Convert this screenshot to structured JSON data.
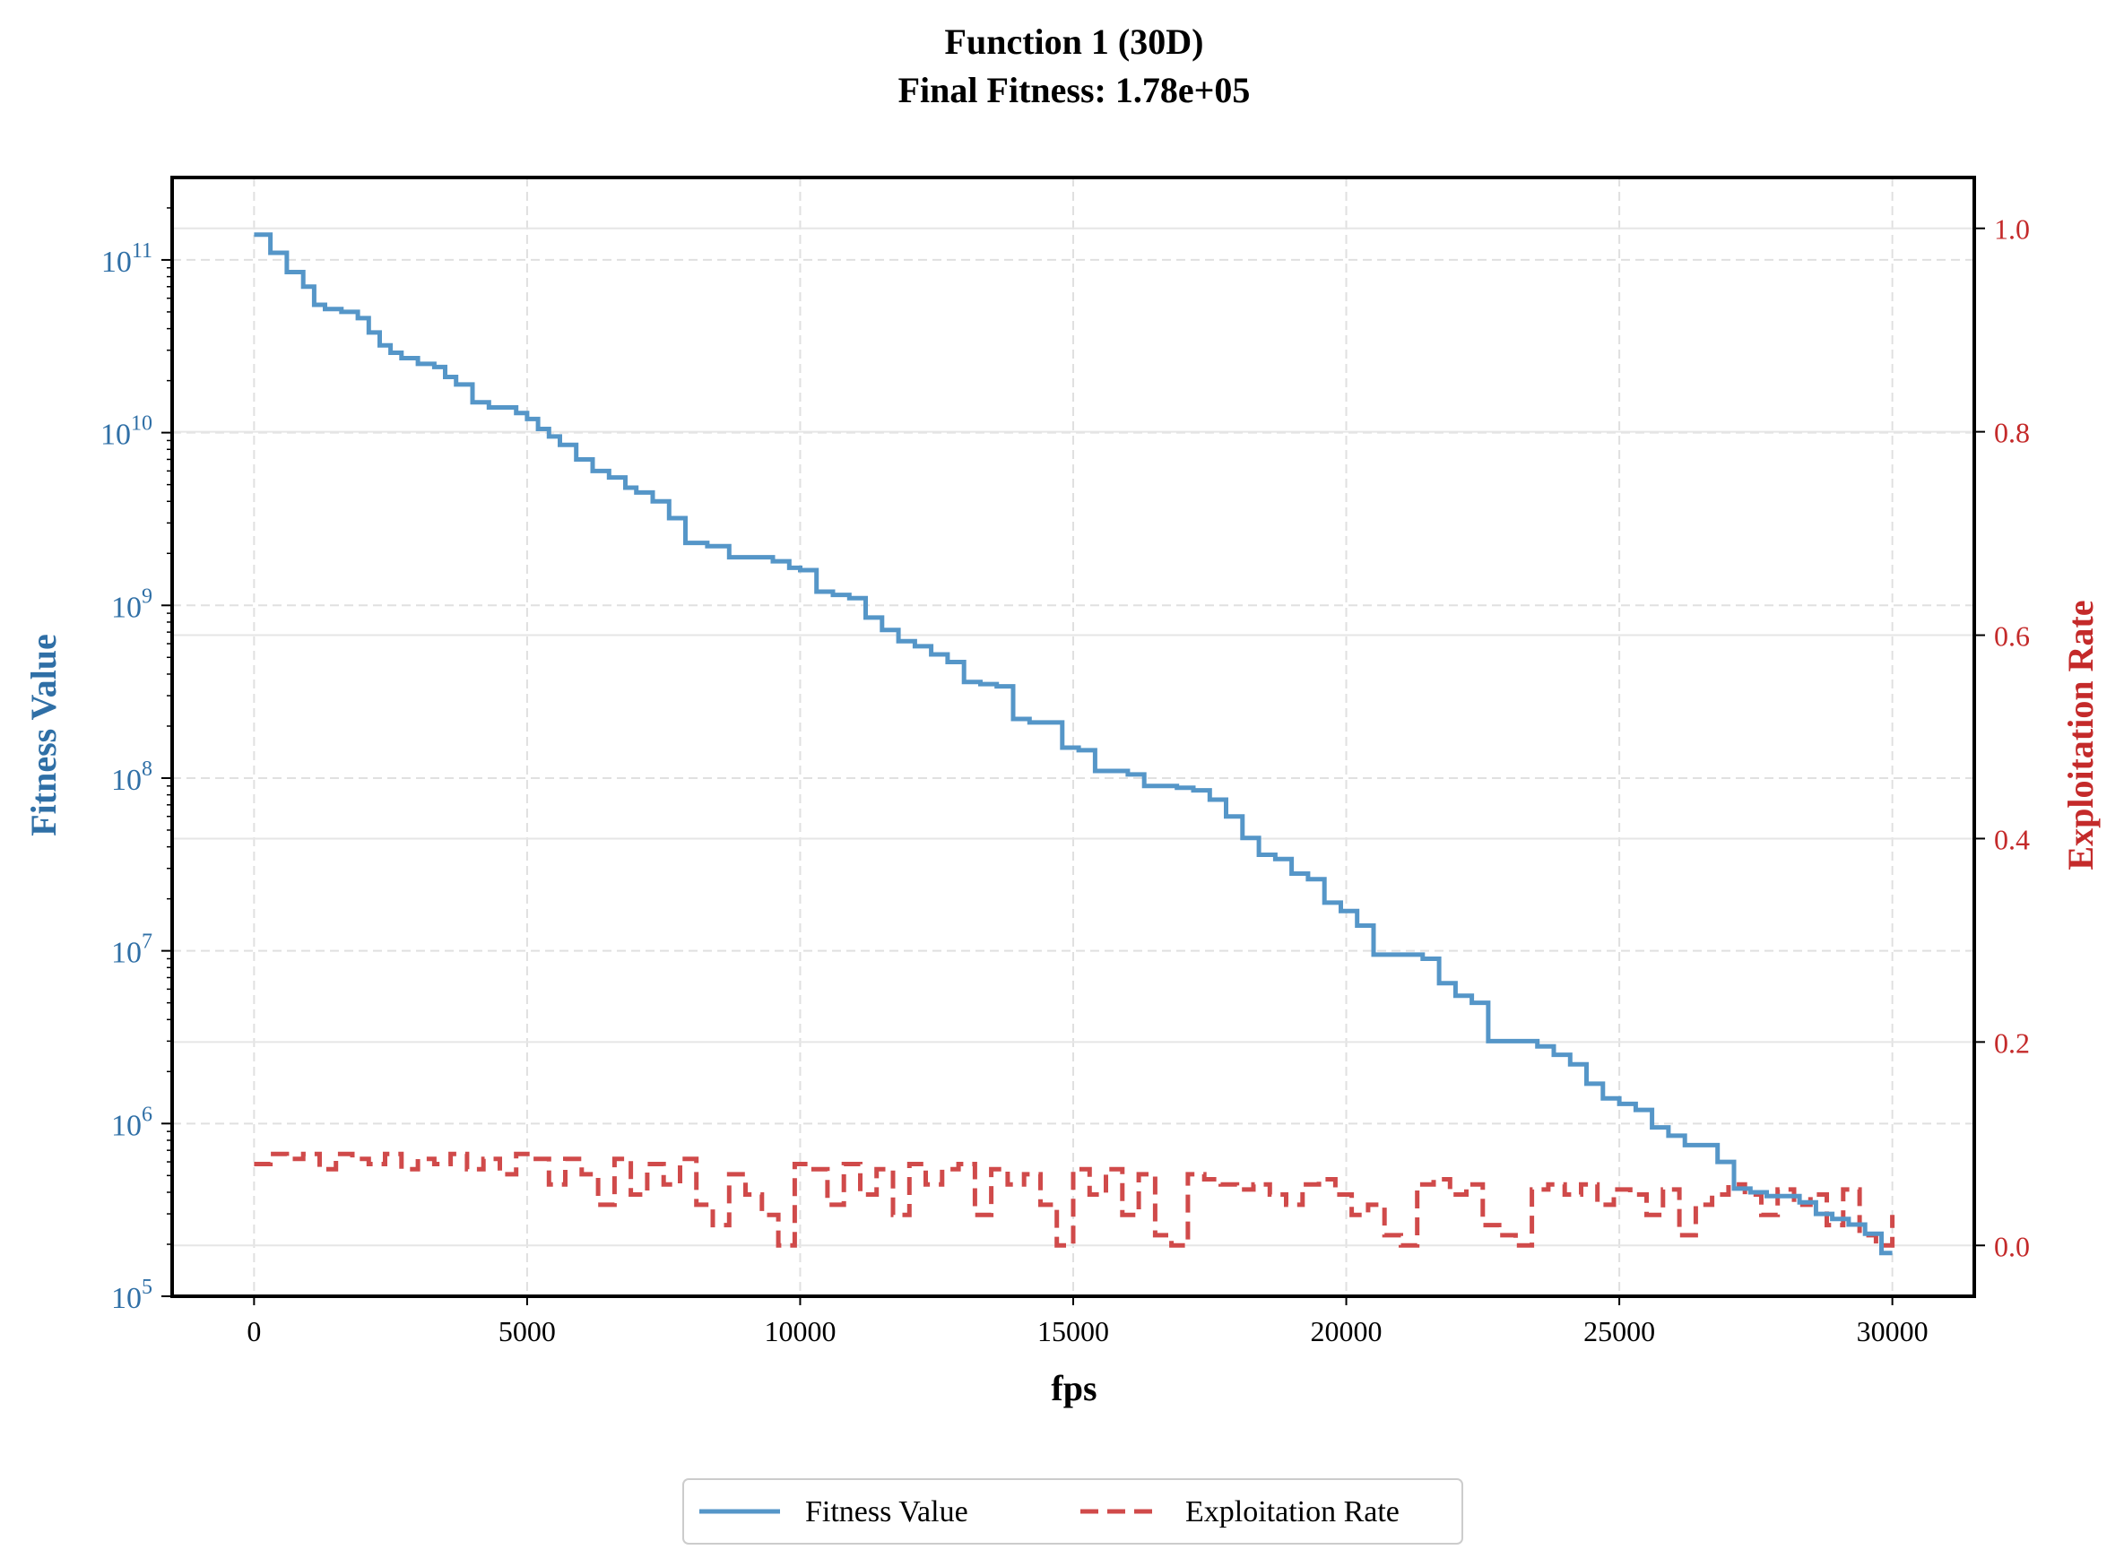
{
  "chart_data": {
    "type": "line",
    "title": "Function 1 (30D)",
    "subtitle": "Final Fitness: 1.78e+05",
    "xlabel": "fps",
    "ylabel_left": "Fitness Value",
    "ylabel_right": "Exploitation Rate",
    "x_ticks": [
      "0",
      "5000",
      "10000",
      "15000",
      "20000",
      "25000",
      "30000"
    ],
    "x_tick_values": [
      0,
      5000,
      10000,
      15000,
      20000,
      25000,
      30000
    ],
    "xlim": [
      -1500,
      31500
    ],
    "left_axis": {
      "scale": "log",
      "ylim": [
        100000.0,
        300000000000.0
      ],
      "ticks": [
        {
          "base": "10",
          "exp": "5",
          "value": 100000
        },
        {
          "base": "10",
          "exp": "6",
          "value": 1000000
        },
        {
          "base": "10",
          "exp": "7",
          "value": 10000000
        },
        {
          "base": "10",
          "exp": "8",
          "value": 100000000
        },
        {
          "base": "10",
          "exp": "9",
          "value": 1000000000
        },
        {
          "base": "10",
          "exp": "10",
          "value": 10000000000
        },
        {
          "base": "10",
          "exp": "11",
          "value": 100000000000
        }
      ]
    },
    "right_axis": {
      "scale": "linear",
      "ylim": [
        -0.05,
        1.05
      ],
      "ticks": [
        "0.0",
        "0.2",
        "0.4",
        "0.6",
        "0.8",
        "1.0"
      ],
      "tick_values": [
        0.0,
        0.2,
        0.4,
        0.6,
        0.8,
        1.0
      ]
    },
    "grid": true,
    "legend_position": "bottom-center",
    "colors": {
      "fitness": "#5596c8",
      "exploitation": "#d04a4a",
      "left_axis_text": "#2f6fa6",
      "right_axis_text": "#c42a2a"
    },
    "series": [
      {
        "name": "Fitness Value",
        "axis": "left",
        "style": "solid",
        "step": true,
        "x": [
          0,
          300,
          600,
          900,
          1100,
          1300,
          1600,
          1900,
          2100,
          2300,
          2500,
          2700,
          3000,
          3300,
          3500,
          3700,
          4000,
          4300,
          4500,
          4800,
          5000,
          5200,
          5400,
          5600,
          5900,
          6200,
          6500,
          6800,
          7000,
          7300,
          7600,
          7900,
          8100,
          8300,
          8700,
          9000,
          9500,
          9800,
          10000,
          10300,
          10600,
          10900,
          11200,
          11500,
          11800,
          12100,
          12400,
          12700,
          13000,
          13300,
          13600,
          13900,
          14200,
          14500,
          14800,
          15100,
          15400,
          15700,
          16000,
          16300,
          16600,
          16900,
          17200,
          17500,
          17800,
          18100,
          18400,
          18700,
          19000,
          19300,
          19600,
          19900,
          20200,
          20500,
          20800,
          21100,
          21400,
          21700,
          22000,
          22300,
          22600,
          22900,
          23200,
          23500,
          23800,
          24100,
          24400,
          24700,
          25000,
          25300,
          25600,
          25900,
          26200,
          26500,
          26800,
          27100,
          27400,
          27700,
          28000,
          28300,
          28600,
          28900,
          29200,
          29500,
          29800,
          30000
        ],
        "values": [
          140000000000.0,
          110000000000.0,
          85000000000.0,
          70000000000.0,
          55000000000.0,
          52000000000.0,
          50000000000.0,
          46000000000.0,
          38000000000.0,
          32000000000.0,
          29000000000.0,
          27000000000.0,
          25000000000.0,
          24000000000.0,
          21000000000.0,
          19000000000.0,
          15000000000.0,
          14000000000.0,
          14000000000.0,
          13000000000.0,
          12000000000.0,
          10500000000.0,
          9500000000.0,
          8500000000.0,
          7000000000.0,
          6000000000.0,
          5500000000.0,
          4800000000.0,
          4500000000.0,
          4000000000.0,
          3200000000.0,
          2300000000.0,
          2300000000.0,
          2200000000.0,
          1900000000.0,
          1900000000.0,
          1800000000.0,
          1650000000.0,
          1600000000.0,
          1200000000.0,
          1150000000.0,
          1100000000.0,
          850000000.0,
          720000000.0,
          620000000.0,
          580000000.0,
          520000000.0,
          470000000.0,
          360000000.0,
          350000000.0,
          340000000.0,
          220000000.0,
          210000000.0,
          210000000.0,
          150000000.0,
          145000000.0,
          110000000.0,
          110000000.0,
          105000000.0,
          90000000.0,
          90000000.0,
          88000000.0,
          85000000.0,
          75000000.0,
          60000000.0,
          45000000.0,
          36000000.0,
          34000000.0,
          28000000.0,
          26000000.0,
          19000000.0,
          17000000.0,
          14000000.0,
          9500000.0,
          9500000.0,
          9500000.0,
          9000000.0,
          6500000.0,
          5500000.0,
          5000000.0,
          3000000.0,
          3000000.0,
          3000000.0,
          2800000.0,
          2500000.0,
          2200000.0,
          1700000.0,
          1400000.0,
          1300000.0,
          1200000.0,
          950000.0,
          850000.0,
          750000.0,
          750000.0,
          600000.0,
          420000.0,
          400000.0,
          380000.0,
          380000.0,
          350000.0,
          300000.0,
          280000.0,
          260000.0,
          230000.0,
          178000.0,
          178000.0
        ]
      },
      {
        "name": "Exploitation Rate",
        "axis": "right",
        "style": "dashed",
        "step": true,
        "x": [
          0,
          300,
          600,
          900,
          1200,
          1500,
          1800,
          2100,
          2400,
          2700,
          3000,
          3300,
          3600,
          3900,
          4200,
          4500,
          4800,
          5100,
          5400,
          5700,
          6000,
          6300,
          6600,
          6900,
          7200,
          7500,
          7800,
          8100,
          8400,
          8700,
          9000,
          9300,
          9600,
          9900,
          10200,
          10500,
          10800,
          11100,
          11400,
          11700,
          12000,
          12300,
          12600,
          12900,
          13200,
          13500,
          13800,
          14100,
          14400,
          14700,
          15000,
          15300,
          15600,
          15900,
          16200,
          16500,
          16800,
          17100,
          17400,
          17700,
          18000,
          18300,
          18600,
          18900,
          19200,
          19500,
          19800,
          20100,
          20400,
          20700,
          21000,
          21300,
          21600,
          21900,
          22200,
          22500,
          22800,
          23100,
          23400,
          23700,
          24000,
          24300,
          24600,
          24900,
          25200,
          25500,
          25800,
          26100,
          26400,
          26700,
          27000,
          27300,
          27600,
          27900,
          28200,
          28500,
          28800,
          29100,
          29400,
          29700,
          30000
        ],
        "values": [
          0.08,
          0.09,
          0.085,
          0.09,
          0.075,
          0.09,
          0.085,
          0.08,
          0.09,
          0.075,
          0.085,
          0.08,
          0.09,
          0.075,
          0.085,
          0.07,
          0.09,
          0.085,
          0.06,
          0.085,
          0.07,
          0.04,
          0.085,
          0.05,
          0.08,
          0.06,
          0.085,
          0.04,
          0.02,
          0.07,
          0.05,
          0.03,
          0.0,
          0.08,
          0.075,
          0.04,
          0.08,
          0.05,
          0.075,
          0.03,
          0.08,
          0.06,
          0.075,
          0.08,
          0.03,
          0.075,
          0.06,
          0.07,
          0.04,
          0.0,
          0.075,
          0.05,
          0.075,
          0.03,
          0.07,
          0.01,
          0.0,
          0.07,
          0.065,
          0.06,
          0.055,
          0.06,
          0.05,
          0.04,
          0.06,
          0.065,
          0.05,
          0.03,
          0.04,
          0.01,
          0.0,
          0.06,
          0.065,
          0.05,
          0.06,
          0.02,
          0.01,
          0.0,
          0.055,
          0.06,
          0.05,
          0.06,
          0.04,
          0.055,
          0.05,
          0.03,
          0.055,
          0.01,
          0.04,
          0.05,
          0.06,
          0.05,
          0.03,
          0.055,
          0.04,
          0.05,
          0.02,
          0.055,
          0.01,
          0.0,
          0.03
        ]
      }
    ]
  }
}
